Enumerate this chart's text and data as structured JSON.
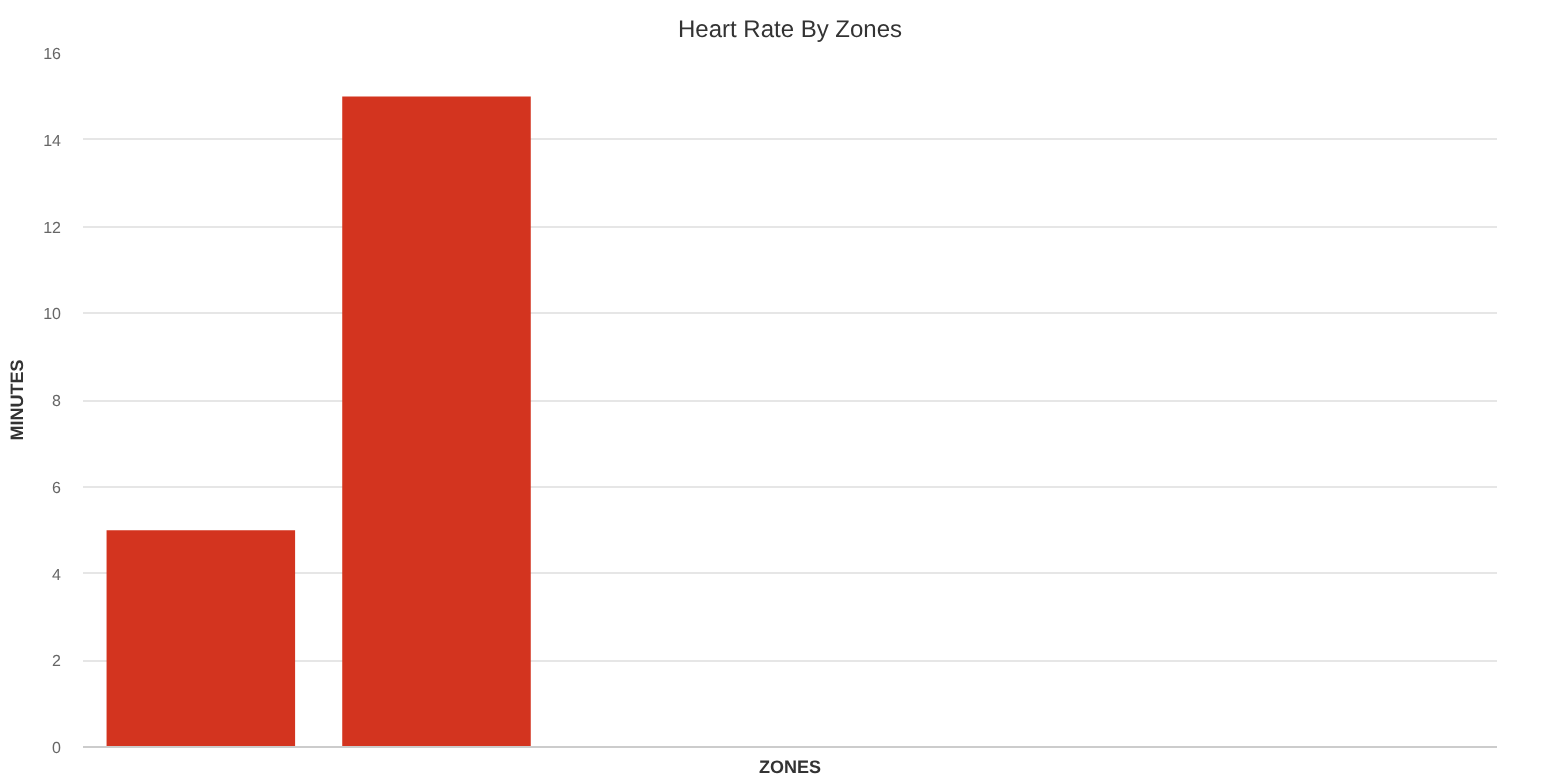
{
  "chart_data": {
    "type": "bar",
    "title": "Heart Rate By Zones",
    "xlabel": "ZONES",
    "ylabel": "MINUTES",
    "categories": [
      null,
      null,
      null,
      null,
      null,
      null
    ],
    "values": [
      5,
      15,
      null,
      null,
      null,
      null
    ],
    "color": "#d3341f",
    "ylim": [
      0,
      16
    ],
    "yticks": [
      0,
      2,
      4,
      6,
      8,
      10,
      12,
      14,
      16
    ],
    "grid": "y"
  }
}
